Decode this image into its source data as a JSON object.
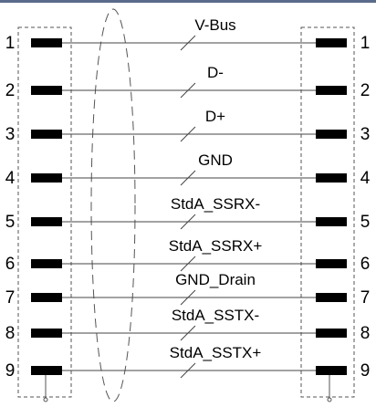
{
  "diagram": {
    "top_bar_color": "#5a6a8a",
    "wire_color": "#444444",
    "pin_color": "#000000",
    "frame_color": "#555555",
    "wires": [
      {
        "pin_left": "1",
        "signal": "V-Bus",
        "pin_right": "1"
      },
      {
        "pin_left": "2",
        "signal": "D-",
        "pin_right": "2"
      },
      {
        "pin_left": "3",
        "signal": "D+",
        "pin_right": "3"
      },
      {
        "pin_left": "4",
        "signal": "GND",
        "pin_right": "4"
      },
      {
        "pin_left": "5",
        "signal": "StdA_SSRX-",
        "pin_right": "5"
      },
      {
        "pin_left": "6",
        "signal": "StdA_SSRX+",
        "pin_right": "6"
      },
      {
        "pin_left": "7",
        "signal": "GND_Drain",
        "pin_right": "7"
      },
      {
        "pin_left": "8",
        "signal": "StdA_SSTX-",
        "pin_right": "8"
      },
      {
        "pin_left": "9",
        "signal": "StdA_SSTX+",
        "pin_right": "9"
      }
    ]
  }
}
